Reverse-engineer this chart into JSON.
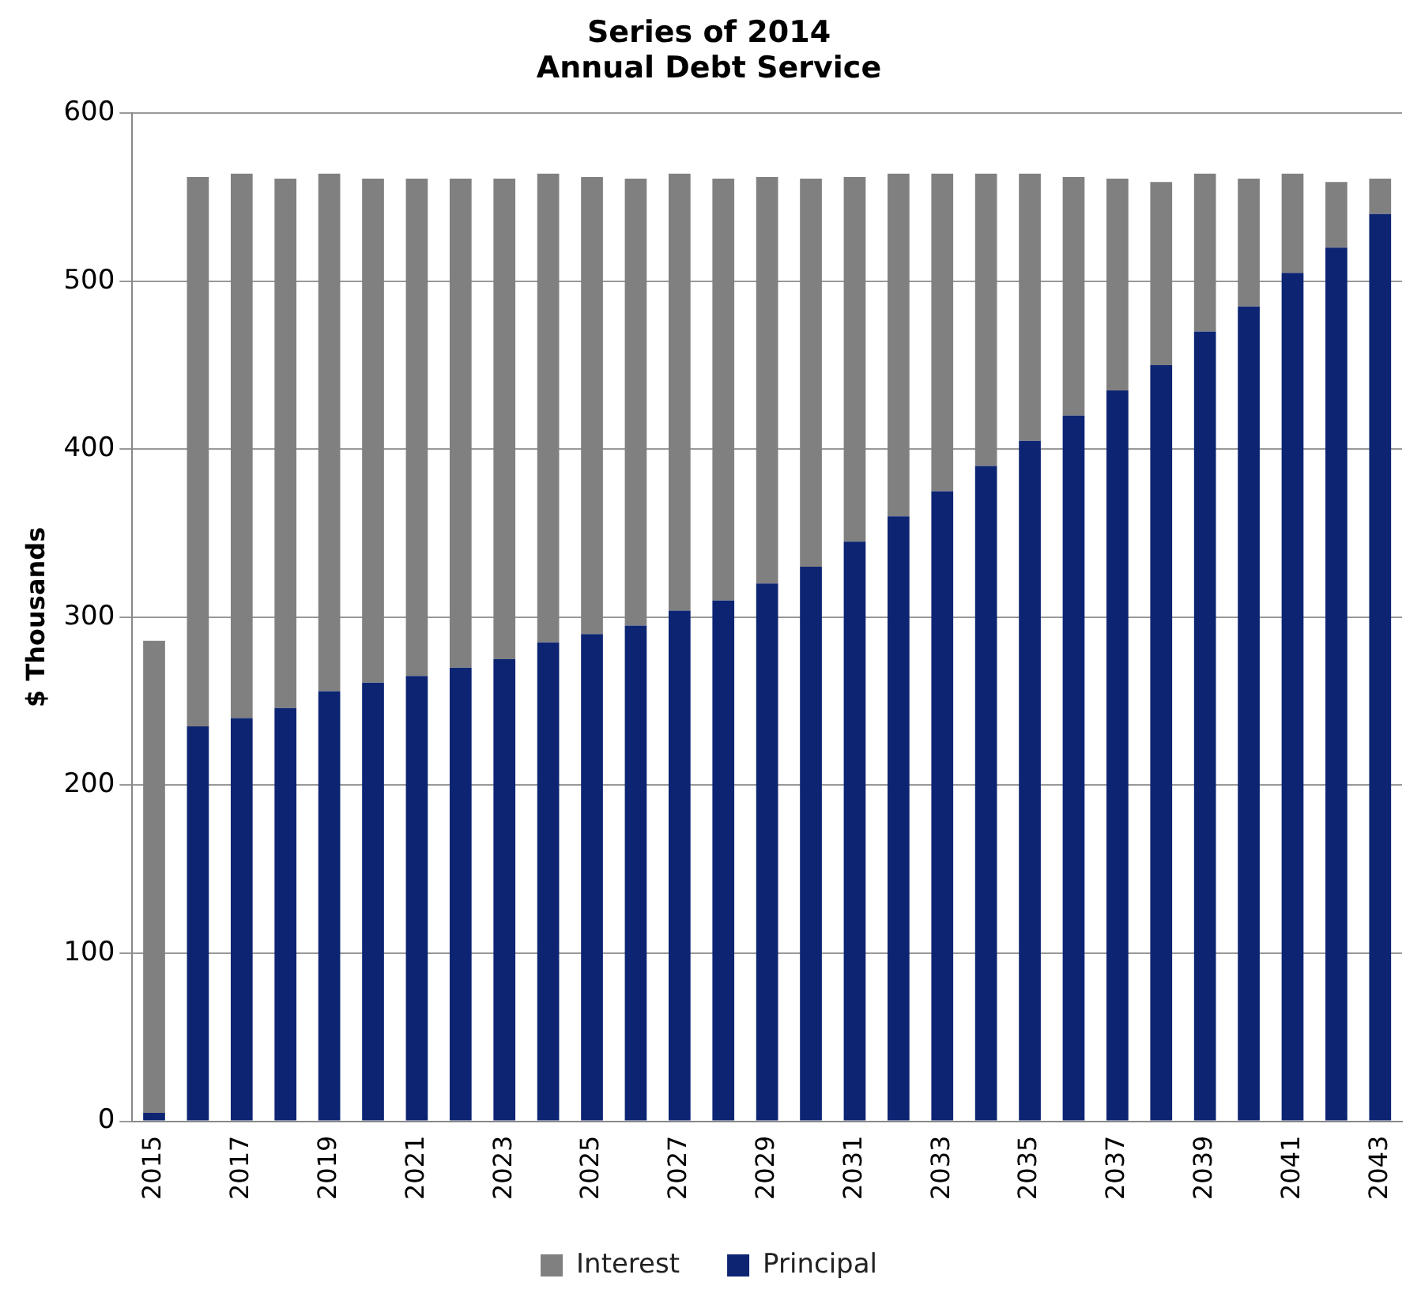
{
  "chart_data": {
    "type": "bar",
    "title": "Series of 2014\nAnnual Debt Service",
    "ylabel": "$ Thousands",
    "categories": [
      "2015",
      null,
      "2017",
      null,
      "2019",
      null,
      "2021",
      null,
      "2023",
      null,
      "2025",
      null,
      "2027",
      null,
      "2029",
      null,
      "2031",
      null,
      "2033",
      null,
      "2035",
      null,
      "2037",
      null,
      "2039",
      null,
      "2041",
      null,
      "2043"
    ],
    "stacked": true,
    "series": [
      {
        "name": "Principal",
        "color": "#0d2473",
        "values": [
          5,
          235,
          240,
          246,
          256,
          261,
          265,
          270,
          275,
          285,
          290,
          295,
          304,
          310,
          320,
          330,
          345,
          360,
          375,
          390,
          405,
          420,
          435,
          450,
          470,
          485,
          505,
          520,
          540
        ]
      },
      {
        "name": "Interest",
        "color": "#808080",
        "values": [
          281,
          327,
          324,
          315,
          308,
          300,
          296,
          291,
          286,
          279,
          272,
          266,
          260,
          251,
          242,
          231,
          217,
          204,
          189,
          174,
          159,
          142,
          126,
          109,
          94,
          76,
          59,
          39,
          21
        ]
      }
    ],
    "ylim": [
      0,
      600
    ],
    "yticks": [
      0,
      100,
      200,
      300,
      400,
      500,
      600
    ],
    "grid": "y",
    "legend": "bottom"
  }
}
